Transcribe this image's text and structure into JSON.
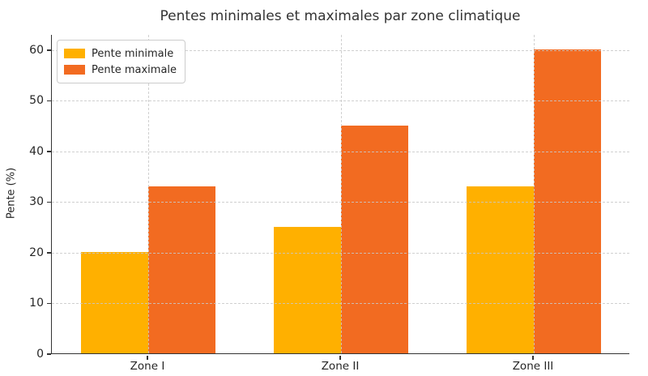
{
  "chart_data": {
    "type": "bar",
    "title": "Pentes minimales et maximales par zone climatique",
    "xlabel": "",
    "ylabel": "Pente (%)",
    "categories": [
      "Zone I",
      "Zone II",
      "Zone III"
    ],
    "series": [
      {
        "name": "Pente minimale",
        "color": "#FFB000",
        "values": [
          20,
          25,
          33
        ]
      },
      {
        "name": "Pente maximale",
        "color": "#F26B21",
        "values": [
          33,
          45,
          60
        ]
      }
    ],
    "ylim": [
      0,
      63
    ],
    "yticks": [
      0,
      10,
      20,
      30,
      40,
      50,
      60
    ],
    "grid": "both-dashed",
    "legend_position": "upper-left",
    "bar_width_fraction": 0.35,
    "colors": {
      "spine": "#333333",
      "grid": "#cccccc",
      "text": "#262626",
      "title": "#333333",
      "background": "#ffffff"
    }
  }
}
